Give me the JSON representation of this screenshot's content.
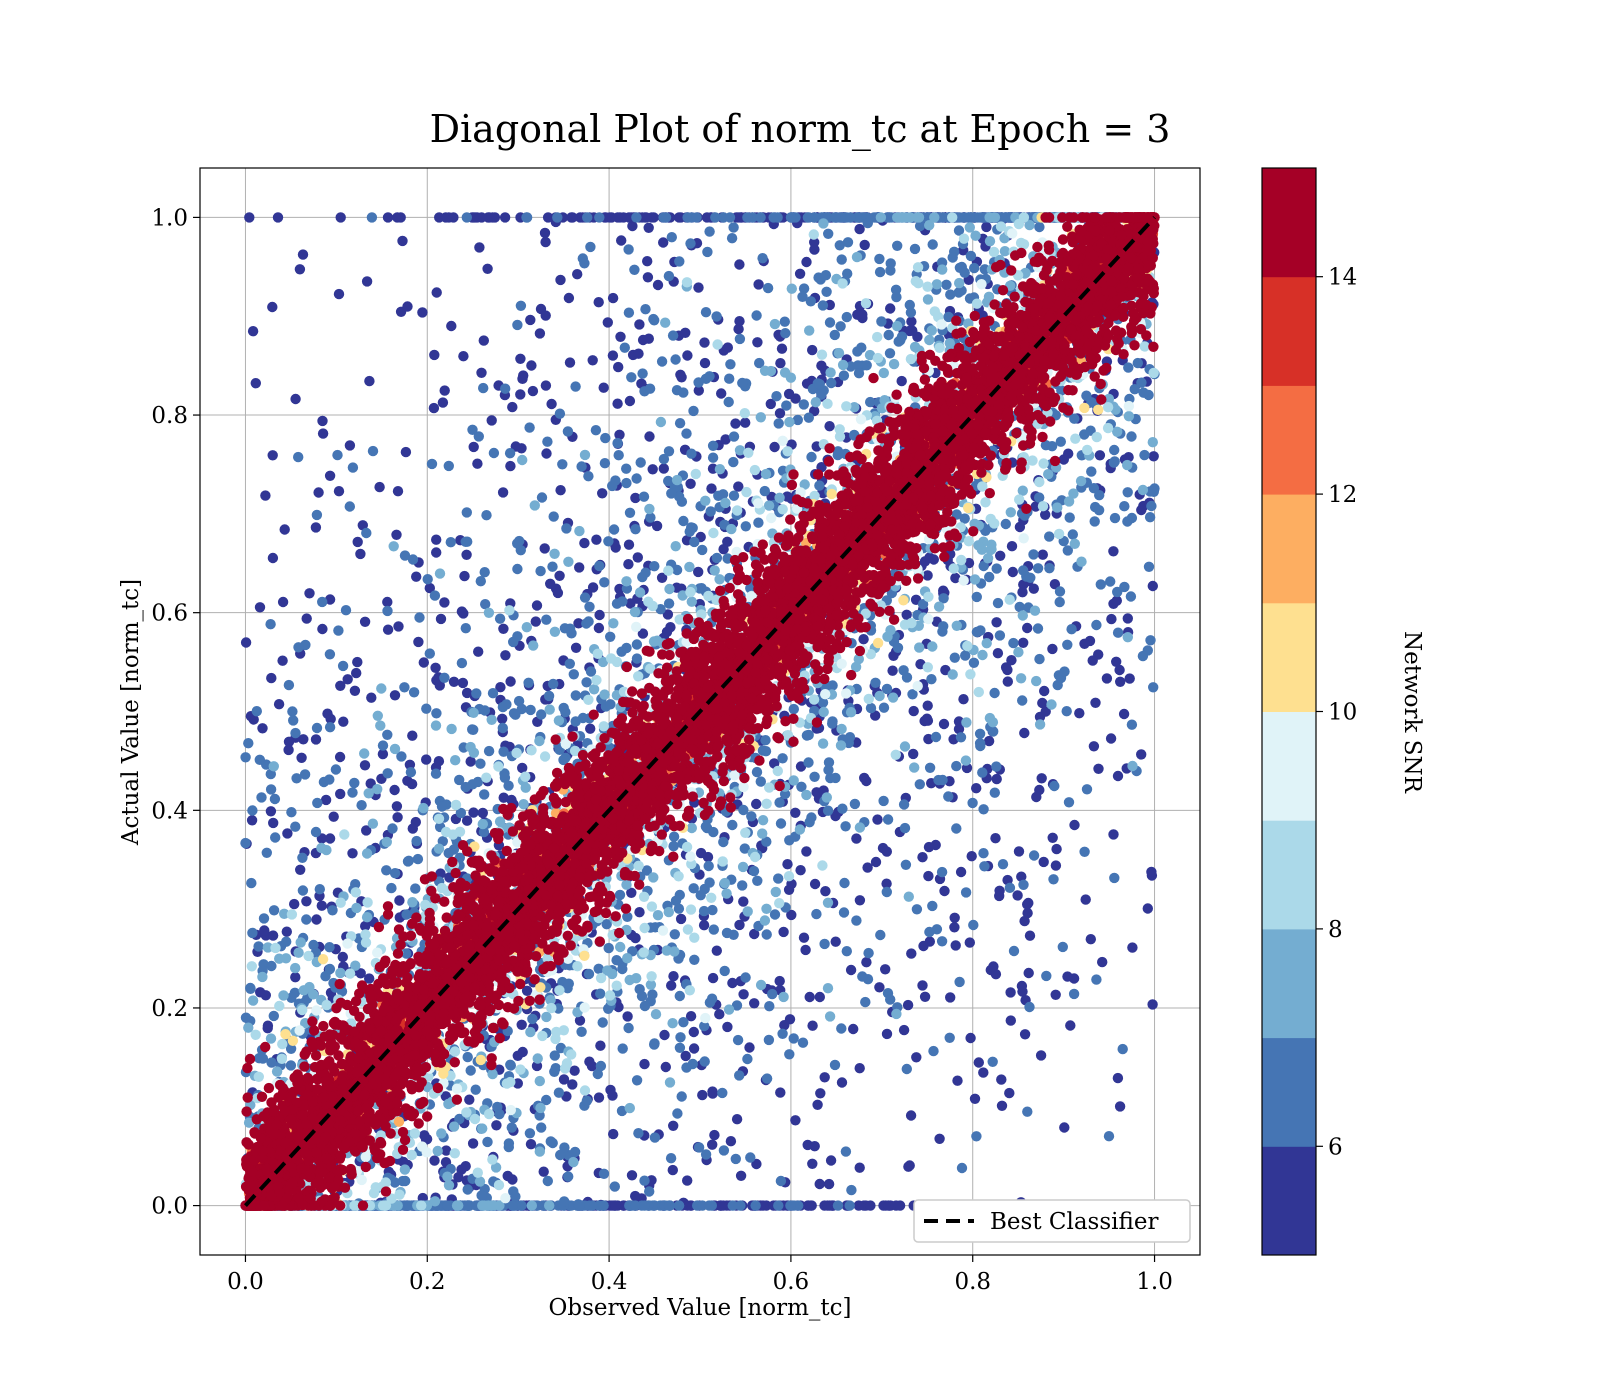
{
  "chart_data": {
    "type": "scatter",
    "title": "Diagonal Plot of norm_tc at Epoch = 3",
    "xlabel": "Observed Value [norm_tc]",
    "ylabel": "Actual Value [norm_tc]",
    "xlim": [
      -0.05,
      1.05
    ],
    "ylim": [
      -0.05,
      1.05
    ],
    "xticks": [
      "0.0",
      "0.2",
      "0.4",
      "0.6",
      "0.8",
      "1.0"
    ],
    "yticks": [
      "0.0",
      "0.2",
      "0.4",
      "0.6",
      "0.8",
      "1.0"
    ],
    "grid": true,
    "reference_line": {
      "label": "Best Classifier",
      "style": "dashed",
      "color": "#000000",
      "points": [
        [
          0,
          0
        ],
        [
          1,
          1
        ]
      ]
    },
    "legend_placement": "lower-right",
    "colorbar": {
      "label": "Network SNR",
      "range": [
        5,
        15
      ],
      "ticks": [
        "6",
        "8",
        "10",
        "12",
        "14"
      ],
      "levels": [
        "#313695",
        "#4575b4",
        "#74add1",
        "#abd9e9",
        "#e0f3f8",
        "#fee090",
        "#fdae61",
        "#f46d43",
        "#d73027",
        "#a50026"
      ]
    },
    "data_description": "Dense scatter of points; high-SNR points (dark red) cluster tightly along the diagonal y = x, low-SNR points (blue) scatter widely on both sides."
  }
}
